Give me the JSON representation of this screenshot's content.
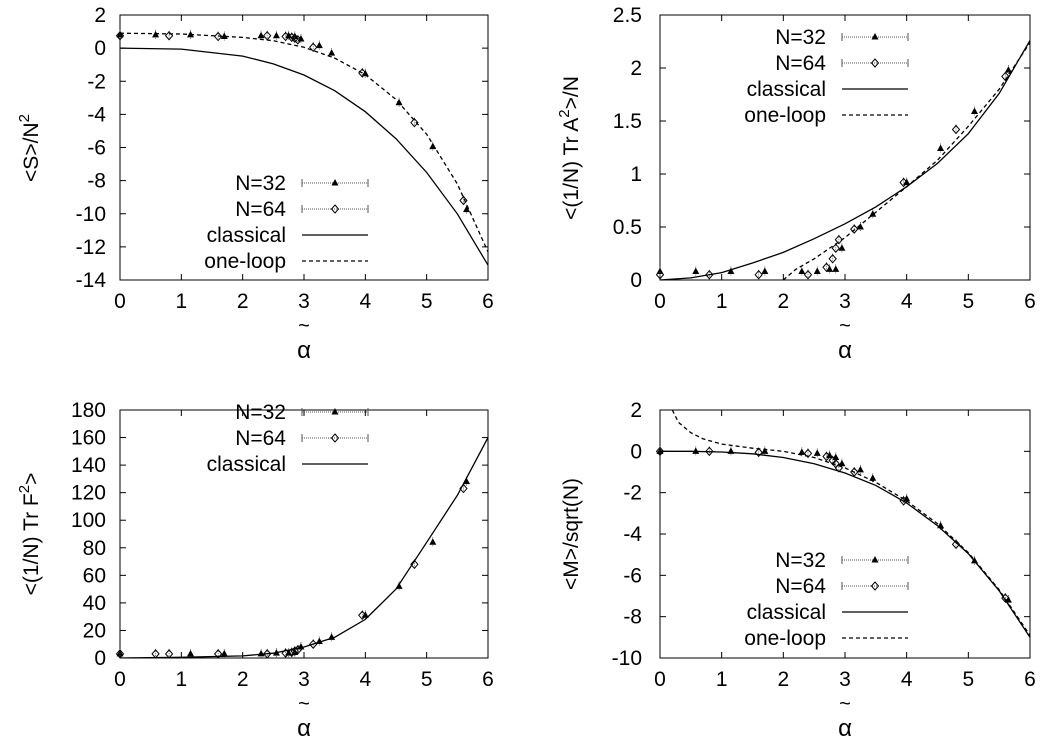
{
  "colors": {
    "axis": "#000000",
    "curve": "#000000",
    "marker": "#000000",
    "errorbar": "#555555"
  },
  "chart_data": [
    {
      "type": "line",
      "ylabel": "<S>/N",
      "ylabel_sup": "2",
      "xlabel_accent": "~",
      "xlabel": "α",
      "xlim": [
        0,
        6
      ],
      "ylim": [
        -14,
        2
      ],
      "xticks": [
        "0",
        "1",
        "2",
        "3",
        "4",
        "5",
        "6"
      ],
      "yticks": [
        "2",
        "0",
        "-2",
        "-4",
        "-6",
        "-8",
        "-10",
        "-12",
        "-14"
      ],
      "legend_position": "bottom-left",
      "legend": [
        "N=32",
        "N=64",
        "classical",
        "one-loop"
      ],
      "series": [
        {
          "name": "N=32",
          "kind": "points",
          "marker": "triangle",
          "x": [
            0.0,
            0.58,
            1.15,
            1.7,
            2.3,
            2.55,
            2.75,
            2.85,
            2.95,
            3.25,
            3.45,
            4.0,
            4.55,
            5.1,
            5.65
          ],
          "y": [
            0.8,
            0.8,
            0.8,
            0.7,
            0.75,
            0.75,
            0.75,
            0.7,
            0.55,
            0.15,
            -0.3,
            -1.55,
            -3.3,
            -5.95,
            -9.75
          ]
        },
        {
          "name": "N=64",
          "kind": "points",
          "marker": "diamond",
          "x": [
            0.0,
            0.8,
            1.6,
            2.4,
            2.7,
            2.8,
            2.85,
            2.9,
            3.15,
            3.95,
            4.8,
            5.6
          ],
          "y": [
            0.75,
            0.75,
            0.7,
            0.75,
            0.7,
            0.65,
            0.6,
            0.5,
            0.05,
            -1.5,
            -4.5,
            -9.2
          ]
        },
        {
          "name": "classical",
          "kind": "line",
          "style": "solid",
          "x": [
            0,
            1,
            2,
            2.5,
            3,
            3.5,
            4,
            4.5,
            5,
            5.5,
            6
          ],
          "y": [
            0,
            -0.06,
            -0.48,
            -0.95,
            -1.62,
            -2.57,
            -3.84,
            -5.47,
            -7.51,
            -10.0,
            -13.1
          ]
        },
        {
          "name": "one-loop",
          "kind": "line",
          "style": "dashed",
          "x": [
            0,
            1,
            2,
            2.5,
            3,
            3.5,
            4,
            4.5,
            5,
            5.5,
            6
          ],
          "y": [
            0.9,
            0.85,
            0.65,
            0.45,
            0.05,
            -0.6,
            -1.6,
            -3.1,
            -5.2,
            -8.2,
            -12.3
          ]
        }
      ]
    },
    {
      "type": "line",
      "ylabel": "<(1/N) Tr A",
      "ylabel_sup": "2",
      "ylabel_tail": ">/N",
      "xlabel_accent": "~",
      "xlabel": "α",
      "xlim": [
        0,
        6
      ],
      "ylim": [
        0,
        2.5
      ],
      "xticks": [
        "0",
        "1",
        "2",
        "3",
        "4",
        "5",
        "6"
      ],
      "yticks": [
        "0",
        "0.5",
        "1",
        "1.5",
        "2",
        "2.5"
      ],
      "legend_position": "top-left",
      "legend": [
        "N=32",
        "N=64",
        "classical",
        "one-loop"
      ],
      "series": [
        {
          "name": "N=32",
          "kind": "points",
          "marker": "triangle",
          "x": [
            0.0,
            0.58,
            1.15,
            1.7,
            2.3,
            2.55,
            2.75,
            2.85,
            2.95,
            3.25,
            3.45,
            4.0,
            4.55,
            5.1,
            5.65
          ],
          "y": [
            0.08,
            0.08,
            0.08,
            0.08,
            0.08,
            0.08,
            0.1,
            0.1,
            0.3,
            0.5,
            0.62,
            0.92,
            1.24,
            1.59,
            1.98
          ]
        },
        {
          "name": "N=64",
          "kind": "points",
          "marker": "diamond",
          "x": [
            0.0,
            0.8,
            1.6,
            2.4,
            2.7,
            2.8,
            2.85,
            2.9,
            3.15,
            3.95,
            4.8,
            5.6
          ],
          "y": [
            0.05,
            0.05,
            0.05,
            0.05,
            0.12,
            0.2,
            0.3,
            0.38,
            0.48,
            0.92,
            1.42,
            1.92
          ]
        },
        {
          "name": "classical",
          "kind": "line",
          "style": "solid",
          "x": [
            0,
            0.5,
            1,
            1.5,
            2,
            2.5,
            3,
            3.5,
            4,
            4.5,
            5,
            5.5,
            6
          ],
          "y": [
            0,
            0.02,
            0.07,
            0.16,
            0.26,
            0.39,
            0.53,
            0.69,
            0.88,
            1.1,
            1.38,
            1.76,
            2.26
          ]
        },
        {
          "name": "one-loop",
          "kind": "line",
          "style": "dashed",
          "x": [
            2.0,
            2.2,
            2.5,
            3,
            3.5,
            4,
            4.5,
            5,
            5.5,
            6
          ],
          "y": [
            0,
            0.1,
            0.2,
            0.4,
            0.64,
            0.88,
            1.13,
            1.45,
            1.8,
            2.24
          ]
        }
      ]
    },
    {
      "type": "line",
      "ylabel": "<(1/N) Tr F",
      "ylabel_sup": "2",
      "ylabel_tail": ">",
      "xlabel_accent": "~",
      "xlabel": "α",
      "xlim": [
        0,
        6
      ],
      "ylim": [
        0,
        180
      ],
      "xticks": [
        "0",
        "1",
        "2",
        "3",
        "4",
        "5",
        "6"
      ],
      "yticks": [
        "0",
        "20",
        "40",
        "60",
        "80",
        "100",
        "120",
        "140",
        "160",
        "180"
      ],
      "legend_position": "top-left",
      "legend": [
        "N=32",
        "N=64",
        "classical"
      ],
      "series": [
        {
          "name": "N=32",
          "kind": "points",
          "marker": "triangle",
          "x": [
            0.0,
            1.15,
            1.7,
            2.3,
            2.55,
            2.75,
            2.85,
            2.95,
            3.25,
            3.45,
            4.0,
            4.55,
            5.1,
            5.65
          ],
          "y": [
            3,
            3,
            3,
            3,
            3.5,
            3.5,
            4,
            8,
            12,
            15,
            31,
            52,
            84,
            128
          ]
        },
        {
          "name": "N=64",
          "kind": "points",
          "marker": "diamond",
          "x": [
            0.0,
            0.58,
            0.8,
            1.6,
            2.4,
            2.7,
            2.8,
            2.85,
            2.9,
            3.15,
            3.95,
            4.8,
            5.6
          ],
          "y": [
            3,
            3,
            3,
            3,
            3,
            3.5,
            4,
            5,
            6,
            10,
            31,
            68,
            123
          ]
        },
        {
          "name": "classical",
          "kind": "line",
          "style": "solid",
          "x": [
            0,
            1,
            2,
            2.5,
            3,
            3.5,
            4,
            4.5,
            5,
            5.5,
            6
          ],
          "y": [
            0,
            0.5,
            1.5,
            3.5,
            8,
            15,
            28,
            50,
            84,
            118,
            160
          ]
        }
      ]
    },
    {
      "type": "line",
      "ylabel": "<M>/sqrt(N)",
      "xlabel_accent": "~",
      "xlabel": "α",
      "xlim": [
        0,
        6
      ],
      "ylim": [
        -10,
        2
      ],
      "xticks": [
        "0",
        "1",
        "2",
        "3",
        "4",
        "5",
        "6"
      ],
      "yticks": [
        "2",
        "0",
        "-2",
        "-4",
        "-6",
        "-8",
        "-10"
      ],
      "legend_position": "bottom-left",
      "legend": [
        "N=32",
        "N=64",
        "classical",
        "one-loop"
      ],
      "series": [
        {
          "name": "N=32",
          "kind": "points",
          "marker": "triangle",
          "x": [
            0.0,
            0.58,
            1.15,
            1.7,
            2.3,
            2.55,
            2.75,
            2.85,
            2.95,
            3.25,
            3.45,
            4.0,
            4.55,
            5.1,
            5.65
          ],
          "y": [
            0,
            0,
            0,
            0,
            -0.05,
            -0.1,
            -0.2,
            -0.3,
            -0.6,
            -0.9,
            -1.3,
            -2.3,
            -3.6,
            -5.3,
            -7.2
          ]
        },
        {
          "name": "N=64",
          "kind": "points",
          "marker": "diamond",
          "x": [
            0.0,
            0.8,
            1.6,
            2.4,
            2.7,
            2.8,
            2.85,
            2.9,
            3.15,
            3.95,
            4.8,
            5.6
          ],
          "y": [
            0,
            0,
            -0.05,
            -0.1,
            -0.25,
            -0.45,
            -0.6,
            -0.8,
            -1.0,
            -2.4,
            -4.5,
            -7.1
          ]
        },
        {
          "name": "classical",
          "kind": "line",
          "style": "solid",
          "x": [
            0,
            0.5,
            1,
            1.5,
            2,
            2.5,
            3,
            3.5,
            4,
            4.5,
            5,
            5.5,
            6
          ],
          "y": [
            0,
            0,
            -0.03,
            -0.12,
            -0.3,
            -0.6,
            -1.05,
            -1.65,
            -2.5,
            -3.6,
            -4.95,
            -6.75,
            -9.0
          ]
        },
        {
          "name": "one-loop",
          "kind": "line",
          "style": "dashed",
          "x": [
            0.2,
            0.3,
            0.5,
            0.7,
            1,
            1.5,
            2,
            2.5,
            3,
            3.5,
            4,
            4.5,
            5,
            5.5,
            6
          ],
          "y": [
            2,
            1.4,
            0.9,
            0.6,
            0.35,
            0.15,
            0,
            -0.3,
            -0.8,
            -1.5,
            -2.4,
            -3.5,
            -4.9,
            -6.7,
            -8.9
          ]
        }
      ]
    }
  ]
}
